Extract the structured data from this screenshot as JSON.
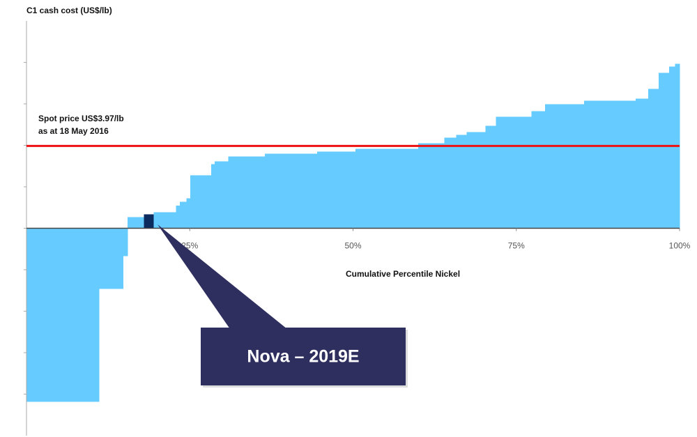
{
  "chart_data": {
    "type": "histogram",
    "y_axis_label": "C1 cash cost (US$/lb)",
    "x_axis_label": "Cumulative Percentile Nickel",
    "bins": [
      0,
      11.1,
      14.8,
      15.5,
      18.0,
      19.5,
      22.9,
      23.5,
      24.5,
      25.1,
      28.3,
      28.8,
      30.9,
      36.5,
      44.5,
      50.4,
      60.0,
      64.0,
      65.8,
      67.4,
      70.3,
      71.9,
      77.3,
      79.4,
      85.4,
      93.3,
      95.2,
      96.8,
      98.4,
      99.3,
      100
    ],
    "values": [
      -8.37,
      -2.92,
      -1.34,
      0.54,
      0.67,
      0.77,
      1.1,
      1.28,
      1.45,
      2.55,
      3.09,
      3.23,
      3.46,
      3.6,
      3.7,
      3.83,
      4.1,
      4.37,
      4.5,
      4.64,
      4.94,
      5.38,
      5.65,
      5.98,
      6.15,
      6.25,
      6.72,
      7.5,
      7.8,
      7.93
    ],
    "colors": [
      "#66ccff",
      "#66ccff",
      "#66ccff",
      "#66ccff",
      "#0b2a5e",
      "#66ccff",
      "#66ccff",
      "#66ccff",
      "#66ccff",
      "#66ccff",
      "#66ccff",
      "#66ccff",
      "#66ccff",
      "#66ccff",
      "#66ccff",
      "#66ccff",
      "#66ccff",
      "#66ccff",
      "#66ccff",
      "#66ccff",
      "#66ccff",
      "#66ccff",
      "#66ccff",
      "#66ccff",
      "#66ccff",
      "#66ccff",
      "#66ccff",
      "#66ccff",
      "#66ccff",
      "#66ccff"
    ],
    "xlim": [
      0,
      100
    ],
    "xticks": [
      {
        "value": 25,
        "label": "25%"
      },
      {
        "value": 50,
        "label": "50%"
      },
      {
        "value": 75,
        "label": "75%"
      },
      {
        "value": 100,
        "label": "100%"
      }
    ],
    "ylim": [
      -10,
      10
    ],
    "yticks": [
      -8,
      -6,
      -4,
      -2,
      0,
      2,
      4,
      6,
      8
    ],
    "reference_line": {
      "value": 3.97,
      "color": "#ee1111",
      "label": "Spot price US$3.97/lb",
      "sublabel": "as at  18 May 2016"
    },
    "callout": "Nova – 2019E"
  }
}
